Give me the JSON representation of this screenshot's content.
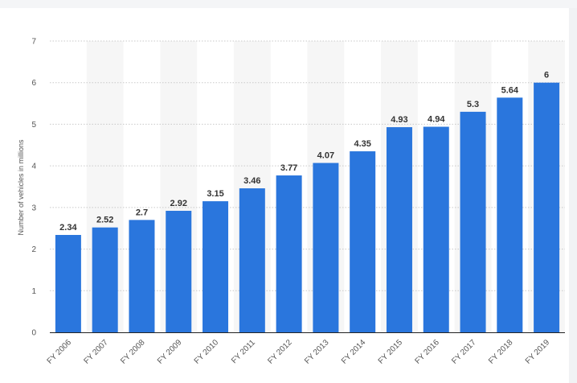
{
  "chart_data": {
    "type": "bar",
    "categories": [
      "FY 2006",
      "FY 2007",
      "FY 2008",
      "FY 2009",
      "FY 2010",
      "FY 2011",
      "FY 2012",
      "FY 2013",
      "FY 2014",
      "FY 2015",
      "FY 2016",
      "FY 2017",
      "FY 2018",
      "FY 2019"
    ],
    "values": [
      2.34,
      2.52,
      2.7,
      2.92,
      3.15,
      3.46,
      3.77,
      4.07,
      4.35,
      4.93,
      4.94,
      5.3,
      5.64,
      6
    ],
    "value_labels": [
      "2.34",
      "2.52",
      "2.7",
      "2.92",
      "3.15",
      "3.46",
      "3.77",
      "4.07",
      "4.35",
      "4.93",
      "4.94",
      "5.3",
      "5.64",
      "6"
    ],
    "title": "",
    "xlabel": "",
    "ylabel": "Number of vehicles in millions",
    "ylim": [
      0,
      7
    ],
    "yticks": [
      "0",
      "1",
      "2",
      "3",
      "4",
      "5",
      "6",
      "7"
    ],
    "grid": true,
    "legend": "none",
    "colors": {
      "bar": "#2a76dd",
      "grid": "#c9c9c9",
      "axis": "#222222",
      "alternate_band": "#f6f6f6",
      "value_label": "#333333",
      "tick_label": "#555555"
    }
  }
}
